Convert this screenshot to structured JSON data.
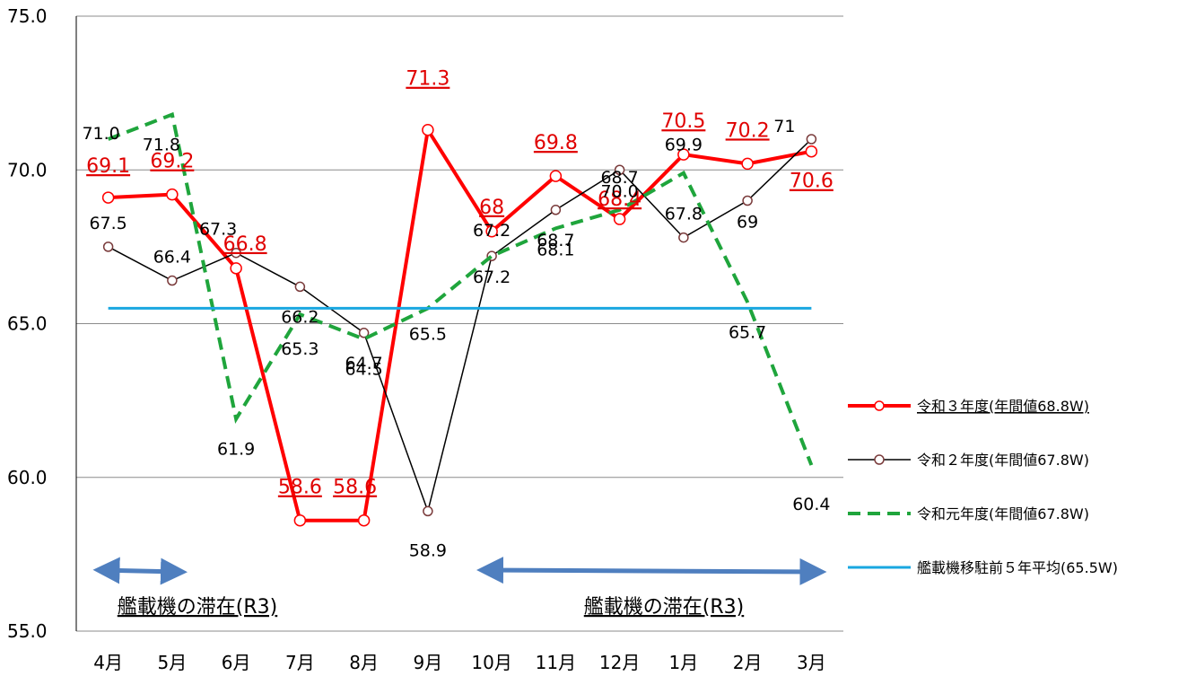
{
  "chart_data": {
    "type": "line",
    "categories": [
      "4月",
      "5月",
      "6月",
      "7月",
      "8月",
      "9月",
      "10月",
      "11月",
      "12月",
      "1月",
      "2月",
      "3月"
    ],
    "ylim": [
      55,
      75
    ],
    "yticks": [
      "55.0",
      "60.0",
      "65.0",
      "70.0",
      "75.0"
    ],
    "grid": true,
    "legend_position": "right",
    "series": [
      {
        "key": "r3",
        "name": "令和３年度(年間値68.8W)",
        "values": [
          69.1,
          69.2,
          66.8,
          58.6,
          58.6,
          71.3,
          68.0,
          69.8,
          68.4,
          70.5,
          70.2,
          70.6
        ],
        "labels": [
          "69.1",
          "69.2",
          "66.8",
          "58.6",
          "58.6",
          "71.3",
          "68",
          "69.8",
          "68.4",
          "70.5",
          "70.2",
          "70.6"
        ],
        "color": "#ff0000",
        "style": "solid-thick-markers"
      },
      {
        "key": "r2",
        "name": "令和２年度(年間値67.8W)",
        "values": [
          67.5,
          66.4,
          67.3,
          66.2,
          64.7,
          58.9,
          67.2,
          68.7,
          70.0,
          67.8,
          69.0,
          71.0
        ],
        "labels": [
          "67.5",
          "66.4",
          "67.3",
          "66.2",
          "64.7",
          "58.9",
          "67.2",
          "68.7",
          "70.0",
          "67.8",
          "69",
          "71"
        ],
        "color": "#000000",
        "style": "solid-thin-markers"
      },
      {
        "key": "r1",
        "name": "令和元年度(年間値67.8W)",
        "values": [
          71.0,
          71.8,
          61.9,
          65.3,
          64.5,
          65.5,
          67.2,
          68.1,
          68.7,
          69.9,
          65.7,
          60.4
        ],
        "labels": [
          "71.0",
          "71.8",
          "61.9",
          "65.3",
          "64.5",
          "65.5",
          "67.2",
          "68.1",
          "68.7",
          "69.9",
          "65.7",
          "60.4"
        ],
        "color": "#1fa53c",
        "style": "dashed"
      },
      {
        "key": "avg",
        "name": "艦載機移駐前５年平均(65.5W)",
        "values": [
          65.5,
          65.5,
          65.5,
          65.5,
          65.5,
          65.5,
          65.5,
          65.5,
          65.5,
          65.5,
          65.5,
          65.5
        ],
        "color": "#1aa7e0",
        "style": "solid"
      }
    ],
    "annotations": [
      {
        "text": "艦載機の滞在(R3)",
        "from": "4月",
        "to": "5月"
      },
      {
        "text": "艦載機の滞在(R3)",
        "from": "10月",
        "to": "3月"
      }
    ],
    "annotation_arrow_color": "#4f7fbf"
  }
}
